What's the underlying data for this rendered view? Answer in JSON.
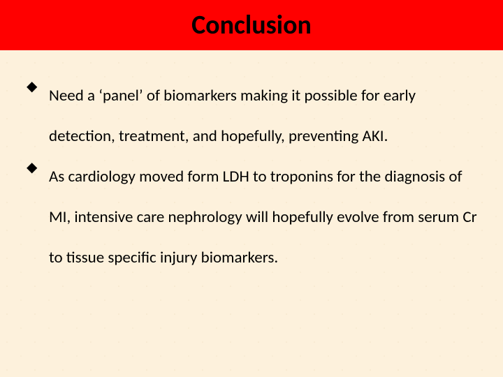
{
  "slide": {
    "title": "Conclusion",
    "title_bg_color": "#ff0000",
    "title_color": "#000000",
    "title_fontsize": 38,
    "title_fontweight": 700,
    "body_bg_color": "#fdf1dc",
    "body_fontsize": 23,
    "body_line_height": 58,
    "bullet_glyph": "◆",
    "bullets": [
      "Need a ‘panel’ of biomarkers making it possible for early detection, treatment, and hopefully, preventing AKI.",
      "As cardiology moved form LDH to troponins for the diagnosis of MI, intensive care nephrology will hopefully evolve from serum Cr to tissue specific injury biomarkers."
    ]
  }
}
